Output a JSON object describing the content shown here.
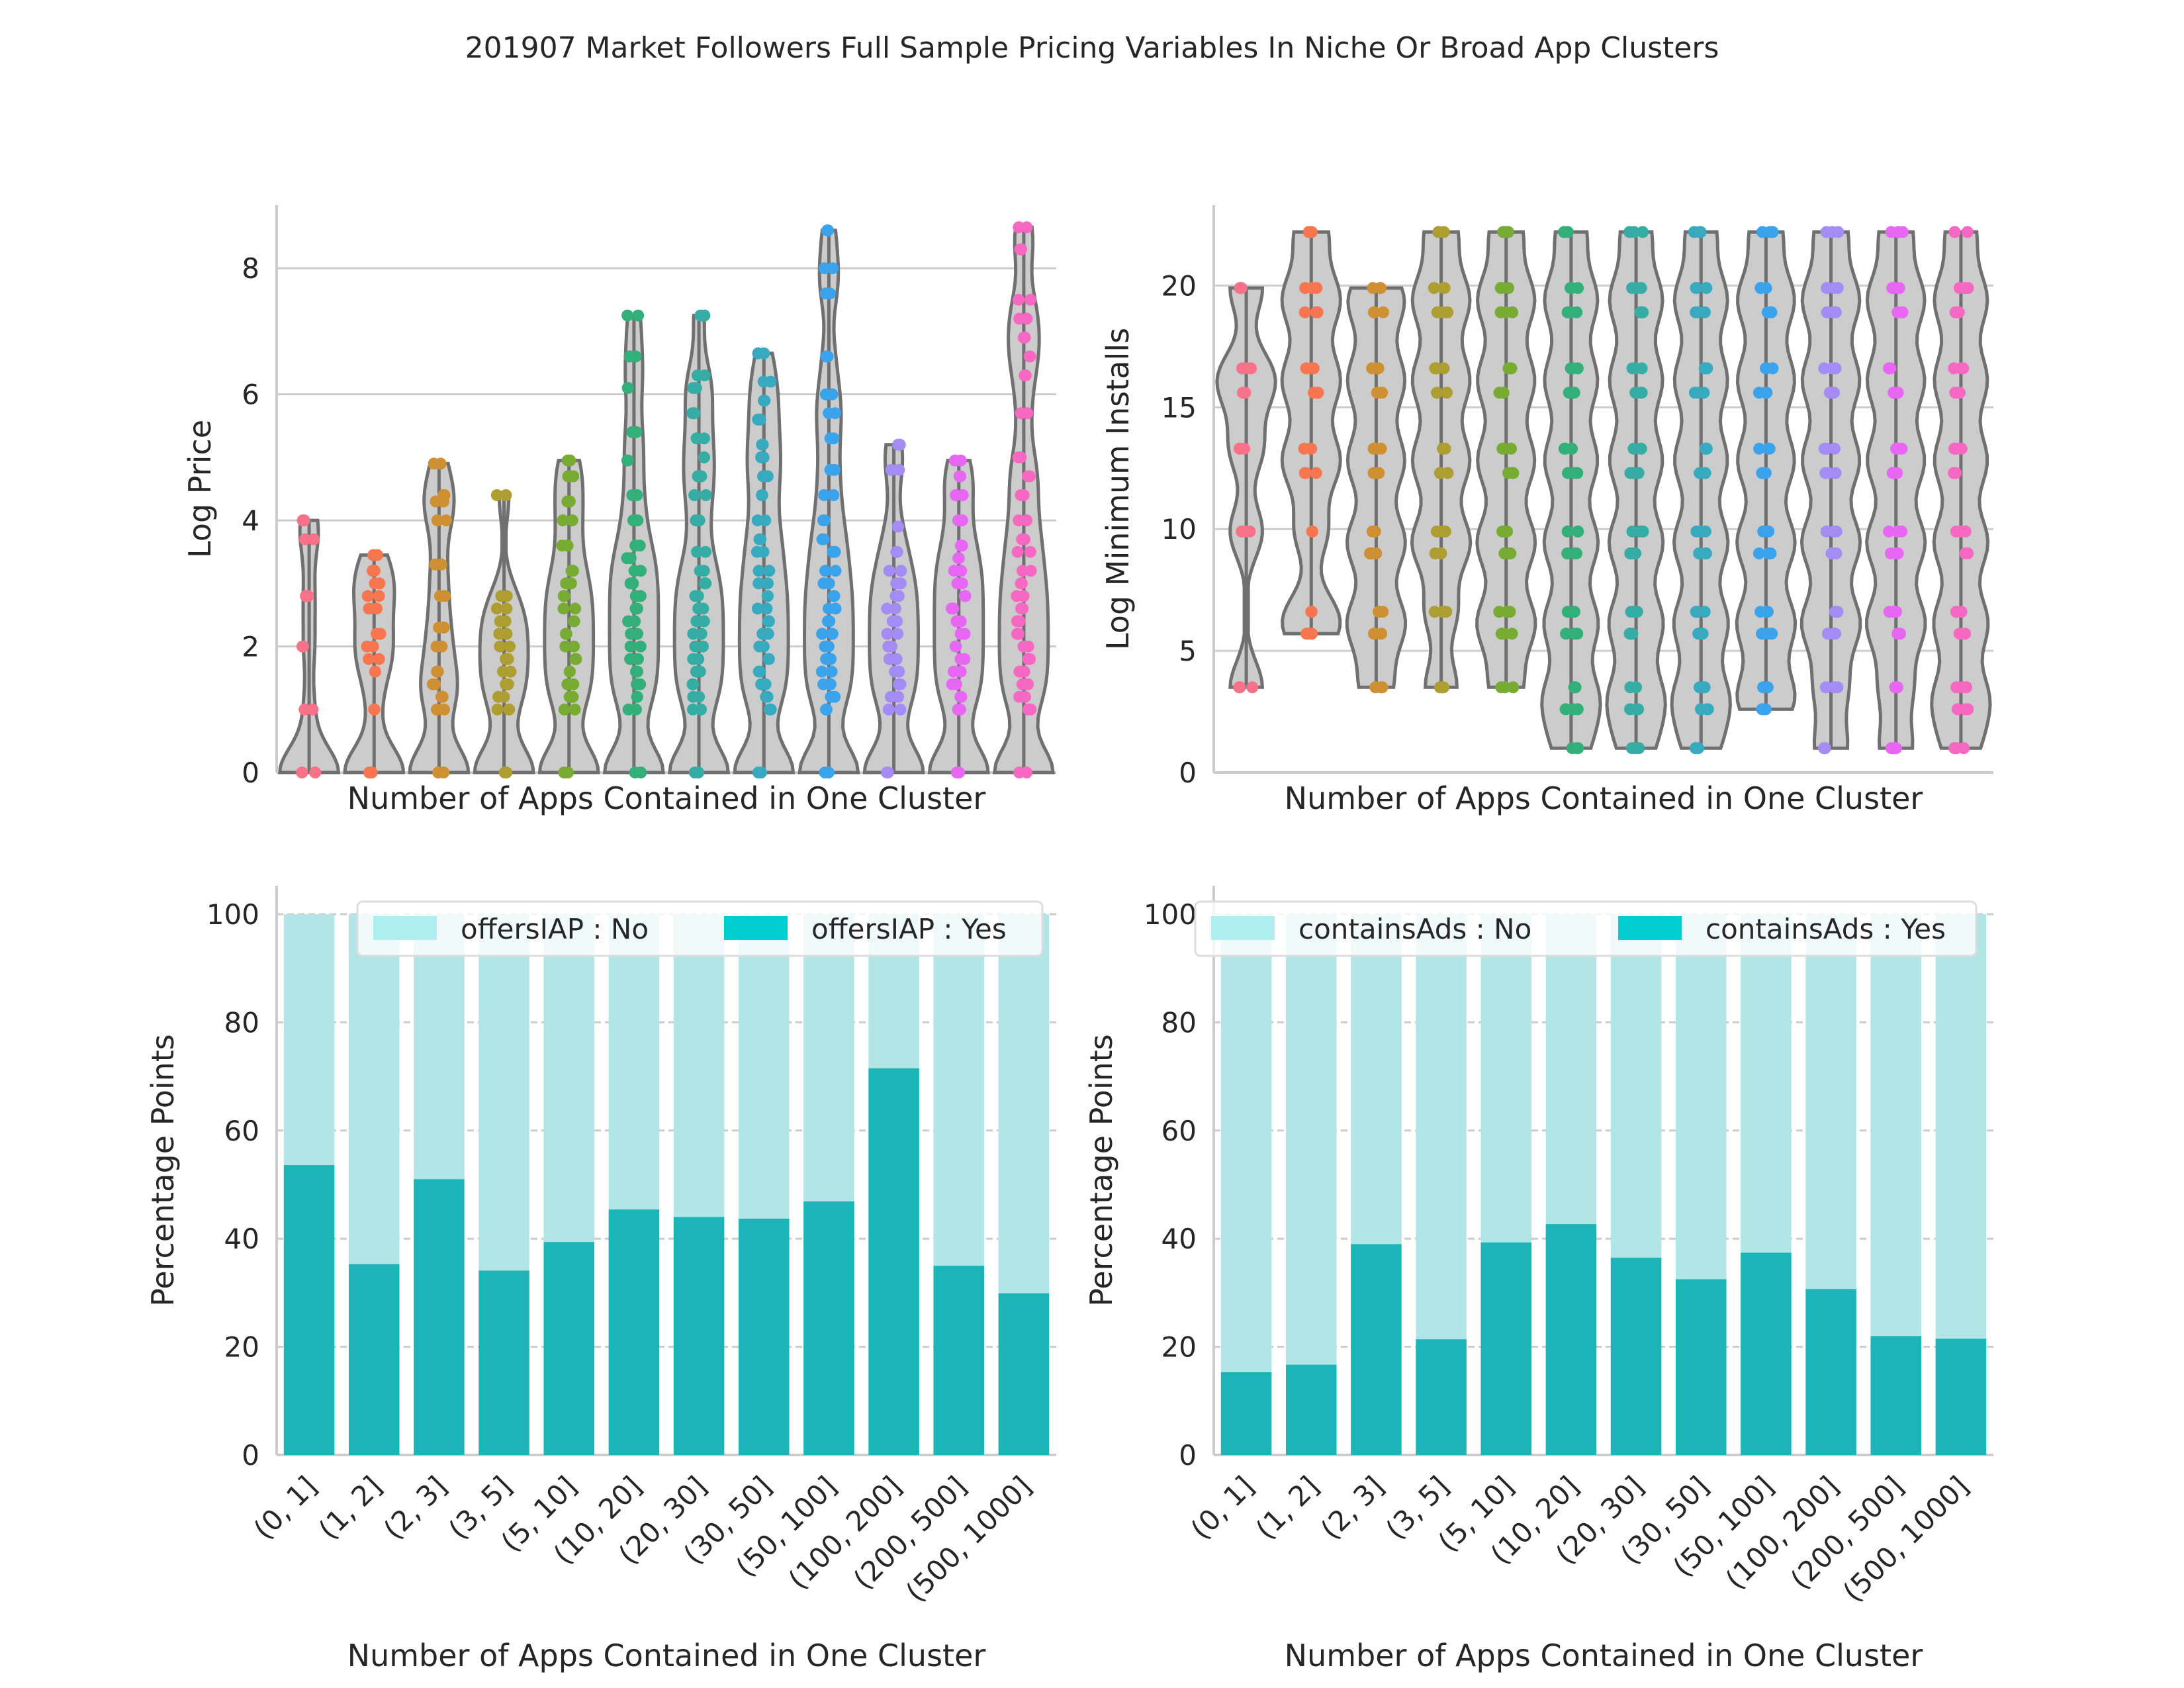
{
  "figure": {
    "title": "201907 Market Followers Full Sample Pricing Variables In Niche Or Broad App Clusters"
  },
  "categories": [
    "(0, 1]",
    "(1, 2]",
    "(2, 3]",
    "(3, 5]",
    "(5, 10]",
    "(10, 20]",
    "(20, 30]",
    "(30, 50]",
    "(50, 100]",
    "(100, 200]",
    "(200, 500]",
    "(500, 1000]"
  ],
  "palette": [
    "#f77189",
    "#f7754f",
    "#ce9032",
    "#ae9d31",
    "#77ab31",
    "#33b07a",
    "#36ada4",
    "#38aabf",
    "#3ba3ec",
    "#a48cf4",
    "#e866f4",
    "#f668c2"
  ],
  "chart_data": [
    {
      "type": "violin+strip",
      "panel": "top-left",
      "xlabel": "Number of Apps Contained in One Cluster",
      "ylabel": "Log Price",
      "ylim": [
        0,
        9
      ],
      "yticks": [
        0,
        2,
        4,
        6,
        8
      ],
      "grid": true,
      "max_values": [
        4.0,
        3.45,
        4.9,
        4.4,
        4.95,
        7.25,
        7.25,
        6.65,
        8.6,
        5.2,
        4.95,
        8.65
      ],
      "min_values": [
        0,
        0,
        0,
        0,
        0,
        0,
        0,
        0,
        0,
        0,
        0,
        0
      ],
      "points": [
        [
          0,
          1.0,
          2.0,
          2.8,
          3.7,
          4.0
        ],
        [
          0,
          1.0,
          1.6,
          1.8,
          2.0,
          2.2,
          2.6,
          2.8,
          3.0,
          3.2,
          3.45
        ],
        [
          0,
          1.0,
          1.2,
          1.4,
          1.6,
          2.0,
          2.3,
          2.8,
          3.3,
          4.0,
          4.3,
          4.4,
          4.9
        ],
        [
          0,
          1.0,
          1.2,
          1.4,
          1.6,
          1.8,
          2.0,
          2.2,
          2.4,
          2.6,
          2.8,
          4.4
        ],
        [
          0,
          1.0,
          1.2,
          1.4,
          1.6,
          1.8,
          2.0,
          2.2,
          2.4,
          2.6,
          2.8,
          3.0,
          3.2,
          3.6,
          4.0,
          4.3,
          4.7,
          4.95
        ],
        [
          0,
          1.0,
          1.2,
          1.4,
          1.6,
          1.8,
          2.0,
          2.2,
          2.4,
          2.6,
          2.8,
          3.0,
          3.2,
          3.4,
          3.6,
          4.0,
          4.4,
          4.95,
          5.4,
          6.1,
          6.6,
          7.25
        ],
        [
          0,
          1.0,
          1.2,
          1.4,
          1.6,
          1.8,
          2.0,
          2.2,
          2.4,
          2.6,
          2.8,
          3.0,
          3.2,
          3.5,
          4.0,
          4.4,
          4.7,
          5.0,
          5.3,
          5.7,
          6.1,
          6.3,
          7.25
        ],
        [
          0,
          1.0,
          1.2,
          1.4,
          1.6,
          1.8,
          2.0,
          2.2,
          2.4,
          2.6,
          2.8,
          3.0,
          3.2,
          3.5,
          3.7,
          4.0,
          4.4,
          4.7,
          5.0,
          5.2,
          5.6,
          5.9,
          6.2,
          6.65
        ],
        [
          0,
          1.0,
          1.2,
          1.4,
          1.6,
          1.8,
          2.0,
          2.2,
          2.4,
          2.6,
          2.8,
          3.0,
          3.2,
          3.5,
          3.7,
          4.0,
          4.4,
          4.8,
          5.3,
          5.7,
          6.0,
          6.6,
          7.6,
          8.0,
          8.6
        ],
        [
          0,
          1.0,
          1.2,
          1.4,
          1.6,
          1.8,
          2.0,
          2.2,
          2.4,
          2.6,
          2.8,
          3.0,
          3.2,
          3.5,
          3.9,
          4.8,
          5.2
        ],
        [
          0,
          1.0,
          1.2,
          1.4,
          1.6,
          1.8,
          2.0,
          2.2,
          2.4,
          2.6,
          2.8,
          3.0,
          3.2,
          3.4,
          3.6,
          4.0,
          4.4,
          4.7,
          4.95
        ],
        [
          0,
          1.0,
          1.2,
          1.4,
          1.6,
          1.8,
          2.0,
          2.2,
          2.4,
          2.6,
          2.8,
          3.0,
          3.2,
          3.5,
          3.7,
          4.0,
          4.4,
          4.7,
          5.0,
          5.7,
          6.3,
          6.6,
          6.9,
          7.2,
          7.5,
          8.3,
          8.65
        ]
      ]
    },
    {
      "type": "violin+strip",
      "panel": "top-right",
      "xlabel": "Number of Apps Contained in One Cluster",
      "ylabel": "Log Minimum Installs",
      "ylim": [
        0,
        23.3
      ],
      "yticks": [
        0,
        5,
        10,
        15,
        20
      ],
      "grid": true,
      "max_values": [
        19.9,
        22.2,
        19.9,
        22.2,
        22.2,
        22.2,
        22.2,
        22.2,
        22.2,
        22.2,
        22.2,
        22.2
      ],
      "min_values": [
        3.5,
        5.7,
        3.5,
        3.5,
        3.5,
        1.0,
        1.0,
        1.0,
        2.6,
        1.0,
        1.0,
        1.0
      ],
      "points": [
        [
          3.5,
          9.9,
          13.3,
          15.6,
          16.6,
          19.9
        ],
        [
          5.7,
          6.6,
          9.9,
          12.3,
          13.3,
          15.6,
          16.6,
          18.9,
          19.9,
          22.2
        ],
        [
          3.5,
          5.7,
          6.6,
          9.0,
          9.9,
          12.3,
          13.3,
          15.6,
          16.6,
          18.9,
          19.9
        ],
        [
          3.5,
          6.6,
          9.0,
          9.9,
          12.3,
          13.3,
          15.6,
          16.6,
          18.9,
          19.9,
          22.2
        ],
        [
          3.5,
          5.7,
          6.6,
          9.0,
          9.9,
          12.3,
          13.3,
          15.6,
          16.6,
          18.9,
          19.9,
          22.2
        ],
        [
          1.0,
          2.6,
          3.5,
          5.7,
          6.6,
          9.0,
          9.9,
          12.3,
          13.3,
          15.6,
          16.6,
          18.9,
          19.9,
          22.2
        ],
        [
          1.0,
          2.6,
          3.5,
          5.7,
          6.6,
          9.0,
          9.9,
          12.3,
          13.3,
          15.6,
          16.6,
          18.9,
          19.9,
          22.2
        ],
        [
          1.0,
          2.6,
          3.5,
          5.7,
          6.6,
          9.0,
          9.9,
          12.3,
          13.3,
          15.6,
          16.6,
          18.9,
          19.9,
          22.2
        ],
        [
          2.6,
          3.5,
          5.7,
          6.6,
          9.0,
          9.9,
          12.3,
          13.3,
          15.6,
          16.6,
          18.9,
          19.9,
          22.2
        ],
        [
          1.0,
          3.5,
          5.7,
          6.6,
          9.0,
          9.9,
          12.3,
          13.3,
          15.6,
          16.6,
          18.9,
          19.9,
          22.2
        ],
        [
          1.0,
          3.5,
          5.7,
          6.6,
          9.0,
          9.9,
          12.3,
          13.3,
          15.6,
          16.6,
          18.9,
          19.9,
          22.2
        ],
        [
          1.0,
          2.6,
          3.5,
          5.7,
          6.6,
          9.0,
          9.9,
          12.3,
          13.3,
          15.6,
          16.6,
          18.9,
          19.9,
          22.2
        ]
      ]
    },
    {
      "type": "bar",
      "stacked": true,
      "panel": "bottom-left",
      "xlabel": "Number of Apps Contained in One Cluster",
      "ylabel": "Percentage Points",
      "ylim": [
        0,
        100
      ],
      "yticks": [
        0,
        20,
        40,
        60,
        80,
        100
      ],
      "grid": true,
      "legend": "top",
      "series": [
        {
          "name": "offersIAP : No",
          "color": "#b2e6e6",
          "values": [
            46.4,
            64.7,
            49.0,
            65.9,
            60.6,
            54.6,
            56.0,
            56.3,
            53.1,
            28.5,
            65.0,
            70.1
          ]
        },
        {
          "name": "offersIAP : Yes",
          "color": "#1bb5b8",
          "values": [
            53.6,
            35.3,
            51.0,
            34.1,
            39.4,
            45.4,
            44.0,
            43.7,
            46.9,
            71.5,
            35.0,
            29.9
          ]
        }
      ]
    },
    {
      "type": "bar",
      "stacked": true,
      "panel": "bottom-right",
      "xlabel": "Number of Apps Contained in One Cluster",
      "ylabel": "Percentage Points",
      "ylim": [
        0,
        100
      ],
      "yticks": [
        0,
        20,
        40,
        60,
        80,
        100
      ],
      "grid": true,
      "legend": "top",
      "series": [
        {
          "name": "containsAds : No",
          "color": "#b2e6e6",
          "values": [
            84.7,
            83.3,
            61.0,
            78.6,
            60.7,
            57.3,
            63.5,
            67.5,
            62.6,
            69.3,
            78.0,
            78.5
          ]
        },
        {
          "name": "containsAds : Yes",
          "color": "#1bb5b8",
          "values": [
            15.3,
            16.7,
            39.0,
            21.4,
            39.3,
            42.7,
            36.5,
            32.5,
            37.4,
            30.7,
            22.0,
            21.5
          ]
        }
      ]
    }
  ]
}
